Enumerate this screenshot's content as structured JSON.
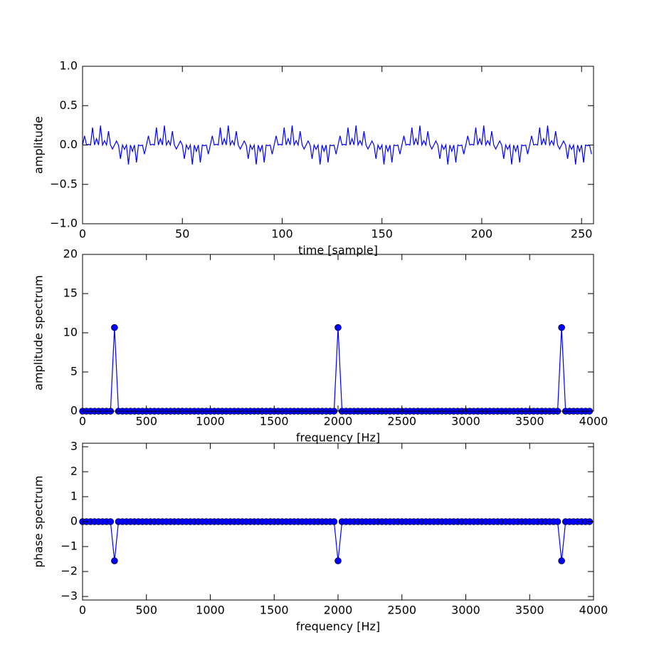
{
  "chart_data": [
    {
      "type": "line",
      "xlabel": "time [sample]",
      "ylabel": "amplitude",
      "x": [
        0,
        1,
        2,
        3,
        4,
        5,
        6,
        7,
        8,
        9,
        10,
        11,
        12,
        13,
        14,
        15,
        16,
        17,
        18,
        19,
        20,
        21,
        22,
        23,
        24,
        25,
        26,
        27,
        28,
        29,
        30,
        31,
        32,
        33,
        34,
        35,
        36,
        37,
        38,
        39,
        40,
        41,
        42,
        43,
        44,
        45,
        46,
        47,
        48,
        49,
        50,
        51,
        52,
        53,
        54,
        55,
        56,
        57,
        58,
        59,
        60,
        61,
        62,
        63,
        64,
        65,
        66,
        67,
        68,
        69,
        70,
        71,
        72,
        73,
        74,
        75,
        76,
        77,
        78,
        79,
        80,
        81,
        82,
        83,
        84,
        85,
        86,
        87,
        88,
        89,
        90,
        91,
        92,
        93,
        94,
        95,
        96,
        97,
        98,
        99,
        100,
        101,
        102,
        103,
        104,
        105,
        106,
        107,
        108,
        109,
        110,
        111,
        112,
        113,
        114,
        115,
        116,
        117,
        118,
        119,
        120,
        121,
        122,
        123,
        124,
        125,
        126,
        127,
        128,
        129,
        130,
        131,
        132,
        133,
        134,
        135,
        136,
        137,
        138,
        139,
        140,
        141,
        142,
        143,
        144,
        145,
        146,
        147,
        148,
        149,
        150,
        151,
        152,
        153,
        154,
        155,
        156,
        157,
        158,
        159,
        160,
        161,
        162,
        163,
        164,
        165,
        166,
        167,
        168,
        169,
        170,
        171,
        172,
        173,
        174,
        175,
        176,
        177,
        178,
        179,
        180,
        181,
        182,
        183,
        184,
        185,
        186,
        187,
        188,
        189,
        190,
        191,
        192,
        193,
        194,
        195,
        196,
        197,
        198,
        199,
        200,
        201,
        202,
        203,
        204,
        205,
        206,
        207,
        208,
        209,
        210,
        211,
        212,
        213,
        214,
        215,
        216,
        217,
        218,
        219,
        220,
        221,
        222,
        223,
        224,
        225,
        226,
        227,
        228,
        229,
        230,
        231,
        232,
        233,
        234,
        235,
        236,
        237,
        238,
        239,
        240,
        241,
        242,
        243,
        244,
        245,
        246,
        247,
        248,
        249,
        250,
        251,
        252,
        253,
        254,
        255
      ],
      "series": [
        {
          "color": "#0000ff",
          "values": [
            0,
            0.116,
            0,
            0.009,
            0,
            0.222,
            0,
            0.08,
            0,
            0.247,
            0,
            0.055,
            0,
            0.176,
            0,
            -0.051,
            0,
            0.051,
            0,
            -0.176,
            0,
            -0.055,
            0,
            -0.247,
            0,
            -0.08,
            0,
            -0.222,
            0,
            -0.009,
            0,
            -0.116,
            0,
            0.116,
            0,
            0.009,
            0,
            0.222,
            0,
            0.08,
            0,
            0.247,
            0,
            0.055,
            0,
            0.176,
            0,
            -0.051,
            0,
            0.051,
            0,
            -0.176,
            0,
            -0.055,
            0,
            -0.247,
            0,
            -0.08,
            0,
            -0.222,
            0,
            -0.009,
            0,
            -0.116,
            0,
            0.116,
            0,
            0.009,
            0,
            0.222,
            0,
            0.08,
            0,
            0.247,
            0,
            0.055,
            0,
            0.176,
            0,
            -0.051,
            0,
            0.051,
            0,
            -0.176,
            0,
            -0.055,
            0,
            -0.247,
            0,
            -0.08,
            0,
            -0.222,
            0,
            -0.009,
            0,
            -0.116,
            0,
            0.116,
            0,
            0.009,
            0,
            0.222,
            0,
            0.08,
            0,
            0.247,
            0,
            0.055,
            0,
            0.176,
            0,
            -0.051,
            0,
            0.051,
            0,
            -0.176,
            0,
            -0.055,
            0,
            -0.247,
            0,
            -0.08,
            0,
            -0.222,
            0,
            -0.009,
            0,
            -0.116,
            0,
            0.116,
            0,
            0.009,
            0,
            0.222,
            0,
            0.08,
            0,
            0.247,
            0,
            0.055,
            0,
            0.176,
            0,
            -0.051,
            0,
            0.051,
            0,
            -0.176,
            0,
            -0.055,
            0,
            -0.247,
            0,
            -0.08,
            0,
            -0.222,
            0,
            -0.009,
            0,
            -0.116,
            0,
            0.116,
            0,
            0.009,
            0,
            0.222,
            0,
            0.08,
            0,
            0.247,
            0,
            0.055,
            0,
            0.176,
            0,
            -0.051,
            0,
            0.051,
            0,
            -0.176,
            0,
            -0.055,
            0,
            -0.247,
            0,
            -0.08,
            0,
            -0.222,
            0,
            -0.009,
            0,
            -0.116,
            0,
            0.116,
            0,
            0.009,
            0,
            0.222,
            0,
            0.08,
            0,
            0.247,
            0,
            0.055,
            0,
            0.176,
            0,
            -0.051,
            0,
            0.051,
            0,
            -0.176,
            0,
            -0.055,
            0,
            -0.247,
            0,
            -0.08,
            0,
            -0.222,
            0,
            -0.009,
            0,
            -0.116,
            0,
            0.116,
            0,
            0.009,
            0,
            0.222,
            0,
            0.08,
            0,
            0.247,
            0,
            0.055,
            0,
            0.176,
            0,
            -0.051,
            0,
            0.051,
            0,
            -0.176,
            0,
            -0.055,
            0,
            -0.247,
            0,
            -0.08,
            0,
            -0.222,
            0,
            -0.009,
            0,
            -0.116
          ]
        }
      ],
      "xlim": [
        0,
        256
      ],
      "xticks": [
        0,
        50,
        100,
        150,
        200,
        250
      ],
      "ylim": [
        -1,
        1
      ],
      "yticks": [
        {
          "value": -1,
          "label": "−1.0"
        },
        {
          "value": -0.5,
          "label": "−0.5"
        },
        {
          "value": 0,
          "label": "0.0"
        },
        {
          "value": 0.5,
          "label": "0.5"
        },
        {
          "value": 1,
          "label": "1.0"
        }
      ]
    },
    {
      "type": "line",
      "marker": "o",
      "xlabel": "frequency [Hz]",
      "ylabel": "amplitude spectrum",
      "x": [
        0,
        31.25,
        62.5,
        93.75,
        125,
        156.25,
        187.5,
        218.75,
        250,
        281.25,
        312.5,
        343.75,
        375,
        406.25,
        437.5,
        468.75,
        500,
        531.25,
        562.5,
        593.75,
        625,
        656.25,
        687.5,
        718.75,
        750,
        781.25,
        812.5,
        843.75,
        875,
        906.25,
        937.5,
        968.75,
        1000,
        1031.25,
        1062.5,
        1093.75,
        1125,
        1156.25,
        1187.5,
        1218.75,
        1250,
        1281.25,
        1312.5,
        1343.75,
        1375,
        1406.25,
        1437.5,
        1468.75,
        1500,
        1531.25,
        1562.5,
        1593.75,
        1625,
        1656.25,
        1687.5,
        1718.75,
        1750,
        1781.25,
        1812.5,
        1843.75,
        1875,
        1906.25,
        1937.5,
        1968.75,
        2000,
        2031.25,
        2062.5,
        2093.75,
        2125,
        2156.25,
        2187.5,
        2218.75,
        2250,
        2281.25,
        2312.5,
        2343.75,
        2375,
        2406.25,
        2437.5,
        2468.75,
        2500,
        2531.25,
        2562.5,
        2593.75,
        2625,
        2656.25,
        2687.5,
        2718.75,
        2750,
        2781.25,
        2812.5,
        2843.75,
        2875,
        2906.25,
        2937.5,
        2968.75,
        3000,
        3031.25,
        3062.5,
        3093.75,
        3125,
        3156.25,
        3187.5,
        3218.75,
        3250,
        3281.25,
        3312.5,
        3343.75,
        3375,
        3406.25,
        3437.5,
        3468.75,
        3500,
        3531.25,
        3562.5,
        3593.75,
        3625,
        3656.25,
        3687.5,
        3718.75,
        3750,
        3781.25,
        3812.5,
        3843.75,
        3875,
        3906.25,
        3937.5,
        3968.75
      ],
      "series": [
        {
          "color": "#0000ff",
          "values": [
            0,
            0,
            0,
            0,
            0,
            0,
            0,
            0,
            10.667,
            0,
            0,
            0,
            0,
            0,
            0,
            0,
            0,
            0,
            0,
            0,
            0,
            0,
            0,
            0,
            0,
            0,
            0,
            0,
            0,
            0,
            0,
            0,
            0,
            0,
            0,
            0,
            0,
            0,
            0,
            0,
            0,
            0,
            0,
            0,
            0,
            0,
            0,
            0,
            0,
            0,
            0,
            0,
            0,
            0,
            0,
            0,
            0,
            0,
            0,
            0,
            0,
            0,
            0,
            0,
            10.667,
            0,
            0,
            0,
            0,
            0,
            0,
            0,
            0,
            0,
            0,
            0,
            0,
            0,
            0,
            0,
            0,
            0,
            0,
            0,
            0,
            0,
            0,
            0,
            0,
            0,
            0,
            0,
            0,
            0,
            0,
            0,
            0,
            0,
            0,
            0,
            0,
            0,
            0,
            0,
            0,
            0,
            0,
            0,
            0,
            0,
            0,
            0,
            0,
            0,
            0,
            0,
            0,
            0,
            0,
            0,
            10.667,
            0,
            0,
            0,
            0,
            0,
            0,
            0
          ]
        }
      ],
      "xlim": [
        0,
        4000
      ],
      "xticks": [
        0,
        500,
        1000,
        1500,
        2000,
        2500,
        3000,
        3500,
        4000
      ],
      "ylim": [
        0,
        20
      ],
      "yticks": [
        0,
        5,
        10,
        15,
        20
      ]
    },
    {
      "type": "line",
      "marker": "o",
      "xlabel": "frequency [Hz]",
      "ylabel": "phase spectrum",
      "x": [
        0,
        31.25,
        62.5,
        93.75,
        125,
        156.25,
        187.5,
        218.75,
        250,
        281.25,
        312.5,
        343.75,
        375,
        406.25,
        437.5,
        468.75,
        500,
        531.25,
        562.5,
        593.75,
        625,
        656.25,
        687.5,
        718.75,
        750,
        781.25,
        812.5,
        843.75,
        875,
        906.25,
        937.5,
        968.75,
        1000,
        1031.25,
        1062.5,
        1093.75,
        1125,
        1156.25,
        1187.5,
        1218.75,
        1250,
        1281.25,
        1312.5,
        1343.75,
        1375,
        1406.25,
        1437.5,
        1468.75,
        1500,
        1531.25,
        1562.5,
        1593.75,
        1625,
        1656.25,
        1687.5,
        1718.75,
        1750,
        1781.25,
        1812.5,
        1843.75,
        1875,
        1906.25,
        1937.5,
        1968.75,
        2000,
        2031.25,
        2062.5,
        2093.75,
        2125,
        2156.25,
        2187.5,
        2218.75,
        2250,
        2281.25,
        2312.5,
        2343.75,
        2375,
        2406.25,
        2437.5,
        2468.75,
        2500,
        2531.25,
        2562.5,
        2593.75,
        2625,
        2656.25,
        2687.5,
        2718.75,
        2750,
        2781.25,
        2812.5,
        2843.75,
        2875,
        2906.25,
        2937.5,
        2968.75,
        3000,
        3031.25,
        3062.5,
        3093.75,
        3125,
        3156.25,
        3187.5,
        3218.75,
        3250,
        3281.25,
        3312.5,
        3343.75,
        3375,
        3406.25,
        3437.5,
        3468.75,
        3500,
        3531.25,
        3562.5,
        3593.75,
        3625,
        3656.25,
        3687.5,
        3718.75,
        3750,
        3781.25,
        3812.5,
        3843.75,
        3875,
        3906.25,
        3937.5,
        3968.75
      ],
      "series": [
        {
          "color": "#0000ff",
          "values": [
            0,
            0,
            0,
            0,
            0,
            0,
            0,
            0,
            -1.571,
            0,
            0,
            0,
            0,
            0,
            0,
            0,
            0,
            0,
            0,
            0,
            0,
            0,
            0,
            0,
            0,
            0,
            0,
            0,
            0,
            0,
            0,
            0,
            0,
            0,
            0,
            0,
            0,
            0,
            0,
            0,
            0,
            0,
            0,
            0,
            0,
            0,
            0,
            0,
            0,
            0,
            0,
            0,
            0,
            0,
            0,
            0,
            0,
            0,
            0,
            0,
            0,
            0,
            0,
            0,
            -1.571,
            0,
            0,
            0,
            0,
            0,
            0,
            0,
            0,
            0,
            0,
            0,
            0,
            0,
            0,
            0,
            0,
            0,
            0,
            0,
            0,
            0,
            0,
            0,
            0,
            0,
            0,
            0,
            0,
            0,
            0,
            0,
            0,
            0,
            0,
            0,
            0,
            0,
            0,
            0,
            0,
            0,
            0,
            0,
            0,
            0,
            0,
            0,
            0,
            0,
            0,
            0,
            0,
            0,
            0,
            0,
            -1.571,
            0,
            0,
            0,
            0,
            0,
            0,
            0
          ]
        }
      ],
      "xlim": [
        0,
        4000
      ],
      "xticks": [
        0,
        500,
        1000,
        1500,
        2000,
        2500,
        3000,
        3500,
        4000
      ],
      "ylim": [
        -3.14159,
        3.14159
      ],
      "yticks": [
        {
          "value": -3,
          "label": "−3"
        },
        {
          "value": -2,
          "label": "−2"
        },
        {
          "value": -1,
          "label": "−1"
        },
        0,
        1,
        2,
        3
      ]
    }
  ]
}
